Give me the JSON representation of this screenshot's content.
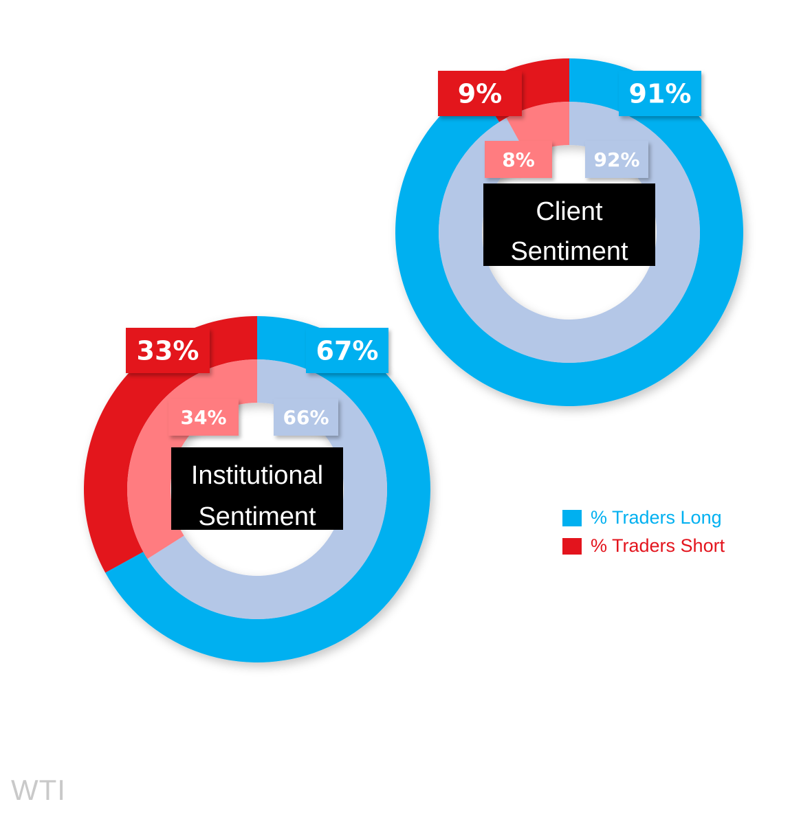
{
  "chart_data": [
    {
      "type": "pie",
      "title": "Client Sentiment",
      "title_lines": [
        "Client",
        "Sentiment"
      ],
      "series": [
        {
          "ring": "outer",
          "values": [
            {
              "name": "% Traders Long",
              "value": 91,
              "label": "91%"
            },
            {
              "name": "% Traders Short",
              "value": 9,
              "label": "9%"
            }
          ]
        },
        {
          "ring": "inner",
          "values": [
            {
              "name": "% Traders Long",
              "value": 92,
              "label": "92%"
            },
            {
              "name": "% Traders Short",
              "value": 8,
              "label": "8%"
            }
          ]
        }
      ]
    },
    {
      "type": "pie",
      "title": "Institutional Sentiment",
      "title_lines": [
        "Institutional",
        "Sentiment"
      ],
      "series": [
        {
          "ring": "outer",
          "values": [
            {
              "name": "% Traders Long",
              "value": 67,
              "label": "67%"
            },
            {
              "name": "% Traders Short",
              "value": 33,
              "label": "33%"
            }
          ]
        },
        {
          "ring": "inner",
          "values": [
            {
              "name": "% Traders Long",
              "value": 66,
              "label": "66%"
            },
            {
              "name": "% Traders Short",
              "value": 34,
              "label": "34%"
            }
          ]
        }
      ]
    }
  ],
  "legend": {
    "placement": "right",
    "items": [
      {
        "label": "% Traders Long",
        "color": "#00b0f0"
      },
      {
        "label": "% Traders Short",
        "color": "#e3141d"
      }
    ]
  },
  "colors": {
    "long_outer": "#00b0f0",
    "short_outer": "#e3141d",
    "long_inner": "#b4c7e7",
    "short_inner": "#ff7c80",
    "center_fill": "#000000",
    "center_text": "#ffffff"
  },
  "watermark": "WTI"
}
